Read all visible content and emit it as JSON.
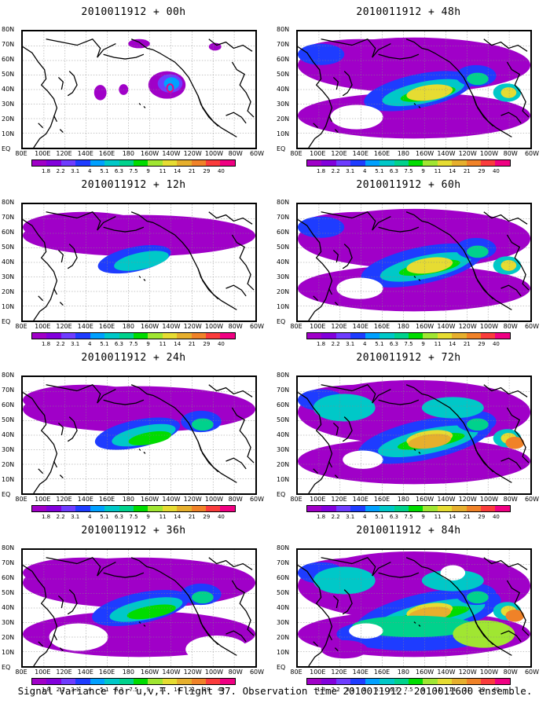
{
  "panels": [
    {
      "title": "2010011912 + 00h",
      "level": 0
    },
    {
      "title": "2010011912 + 48h",
      "level": 4
    },
    {
      "title": "2010011912 + 12h",
      "level": 1
    },
    {
      "title": "2010011912 + 60h",
      "level": 5
    },
    {
      "title": "2010011912 + 24h",
      "level": 2
    },
    {
      "title": "2010011912 + 72h",
      "level": 6
    },
    {
      "title": "2010011912 + 36h",
      "level": 3
    },
    {
      "title": "2010011912 + 84h",
      "level": 7
    }
  ],
  "lat_labels": [
    "80N",
    "70N",
    "60N",
    "50N",
    "40N",
    "30N",
    "20N",
    "10N",
    "EQ"
  ],
  "lon_labels": [
    "80E",
    "100E",
    "120E",
    "140E",
    "160E",
    "180",
    "160W",
    "140W",
    "120W",
    "100W",
    "80W",
    "60W"
  ],
  "colorbar": {
    "labels": [
      "1.8",
      "2.2",
      "3.1",
      "4",
      "5.1",
      "6.3",
      "7.5",
      "9",
      "11",
      "14",
      "21",
      "29",
      "40"
    ],
    "colors": [
      "#a000c8",
      "#8200dc",
      "#6e3cff",
      "#1e3cff",
      "#00a0ff",
      "#00c8c8",
      "#00d28c",
      "#00dc00",
      "#a0e632",
      "#e6dc32",
      "#e6af2d",
      "#f08228",
      "#fa3c3c",
      "#f00082"
    ]
  },
  "footer": "Signal Variance for u,v,T. Flight 37. Observation time 2010011912. 2010011600 ensemble."
}
